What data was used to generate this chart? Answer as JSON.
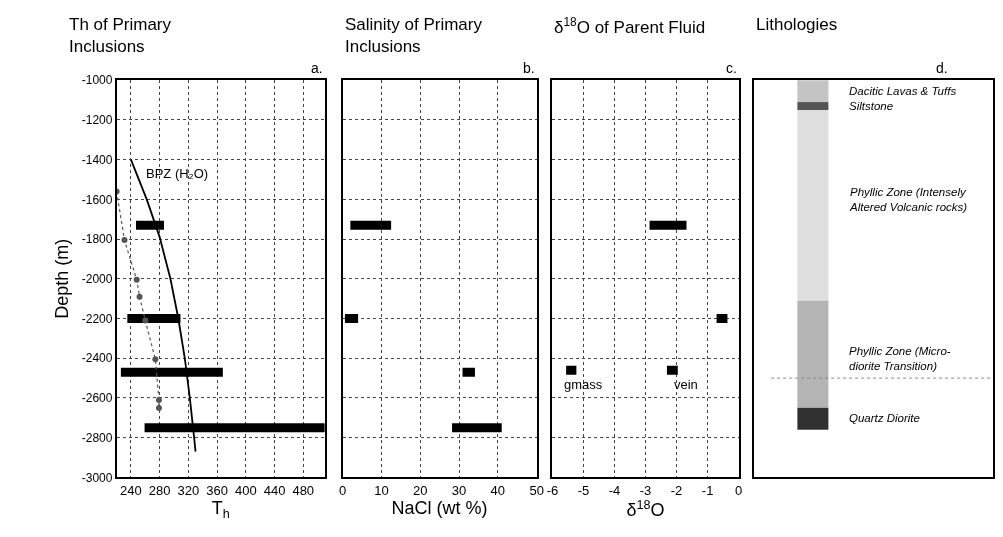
{
  "chart_data": [
    {
      "type": "line",
      "title": "Th of Primary Inclusions",
      "xlabel": "T$_{h}$",
      "ylabel": "Depth (m)",
      "annotations": [
        "a.",
        "BPZ (H₂O)"
      ],
      "xlim": [
        220,
        510
      ],
      "xticks": [
        240,
        280,
        320,
        360,
        400,
        440,
        480
      ],
      "ylim": [
        -3000,
        -1000
      ],
      "yticks": [
        -1000,
        -1200,
        -1400,
        -1600,
        -1800,
        -2000,
        -2200,
        -2400,
        -2600,
        -2800,
        -3000
      ],
      "grid": true,
      "series": [
        {
          "color": "#000000",
          "x": [
            247,
            286
          ],
          "values": [
            -1730,
            -1730
          ]
        },
        {
          "color": "#000000",
          "x": [
            235,
            309
          ],
          "values": [
            -2200,
            -2200
          ]
        },
        {
          "color": "#000000",
          "x": [
            226,
            368
          ],
          "values": [
            -2470,
            -2470
          ]
        },
        {
          "color": "#000000",
          "x": [
            259,
            510
          ],
          "values": [
            -2750,
            -2750
          ]
        },
        {
          "color": "#000000",
          "x": [
            240,
            262,
            280,
            295,
            306,
            315,
            322,
            328,
            330
          ],
          "values": [
            -1400,
            -1600,
            -1790,
            -2000,
            -2200,
            -2400,
            -2600,
            -2800,
            -2870
          ]
        },
        {
          "color": "#555555",
          "marker": "circle",
          "line_style": "dotted",
          "x": [
            220,
            231,
            248,
            252,
            260,
            274,
            279,
            279
          ],
          "values": [
            -1560,
            -1805,
            -2005,
            -2090,
            -2210,
            -2405,
            -2610,
            -2650
          ]
        }
      ]
    },
    {
      "type": "line",
      "title": "Salinity of Primary Inclusions",
      "xlabel": "NaCl (wt %)",
      "annotations": [
        "b."
      ],
      "xlim": [
        0,
        50
      ],
      "xticks": [
        0,
        10,
        20,
        30,
        40,
        50
      ],
      "ylim": [
        -3000,
        -1000
      ],
      "yticks": [
        -1000,
        -1200,
        -1400,
        -1600,
        -1800,
        -2000,
        -2200,
        -2400,
        -2600,
        -2800,
        -3000
      ],
      "tick_labels": "x",
      "grid": true,
      "series": [
        {
          "color": "#000000",
          "x": [
            2,
            12.5
          ],
          "values": [
            -1730,
            -1730
          ]
        },
        {
          "color": "#000000",
          "x": [
            0.6,
            4
          ],
          "values": [
            -2200,
            -2200
          ]
        },
        {
          "color": "#000000",
          "x": [
            30.9,
            34.1
          ],
          "values": [
            -2470,
            -2470
          ]
        },
        {
          "color": "#000000",
          "x": [
            28.2,
            41
          ],
          "values": [
            -2750,
            -2750
          ]
        }
      ]
    },
    {
      "type": "line",
      "title": "δ$^{18}$O of Parent Fluid",
      "xlabel": "δ$^{18}$O",
      "annotations": [
        "c.",
        "gmass",
        "vein"
      ],
      "xlim": [
        -6,
        0
      ],
      "xticks": [
        -6,
        -5,
        -4,
        -3,
        -2,
        -1,
        0
      ],
      "ylim": [
        -3000,
        -1000
      ],
      "yticks": [
        -1000,
        -1200,
        -1400,
        -1600,
        -1800,
        -2000,
        -2200,
        -2400,
        -2600,
        -2800,
        -3000
      ],
      "tick_labels": "x",
      "grid": true,
      "series": [
        {
          "color": "#000000",
          "x": [
            -2.87,
            -1.68
          ],
          "values": [
            -1730,
            -1730
          ]
        },
        {
          "color": "#000000",
          "x": [
            -0.71,
            -0.36
          ],
          "values": [
            -2200,
            -2200
          ]
        },
        {
          "color": "#000000",
          "x": [
            -5.56,
            -5.23
          ],
          "values": [
            -2460,
            -2460
          ]
        },
        {
          "color": "#000000",
          "x": [
            -2.31,
            -1.96
          ],
          "values": [
            -2460,
            -2460
          ]
        }
      ]
    },
    {
      "type": "other",
      "title": "Lithologies",
      "annotations": [
        "d.",
        "Dacitic Lavas & Tuffs",
        "Siltstone",
        "Phyllic Zone (Intensely Altered Volcanic rocks)",
        "Phyllic Zone (Micro-diorite Transition)",
        "Quartz Diorite"
      ]
    }
  ]
}
